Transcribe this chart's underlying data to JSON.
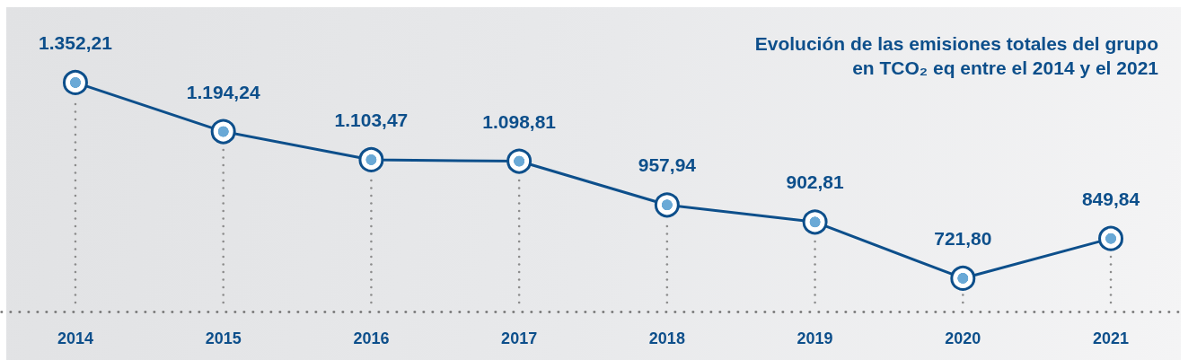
{
  "chart_data": {
    "type": "line",
    "title": "Evolución de las emisiones totales del grupo en TCO₂ eq entre el 2014 y el 2021",
    "categories": [
      "2014",
      "2015",
      "2016",
      "2017",
      "2018",
      "2019",
      "2020",
      "2021"
    ],
    "values": [
      1352.21,
      1194.24,
      1103.47,
      1098.81,
      957.94,
      902.81,
      721.8,
      849.84
    ],
    "value_labels": [
      "1.352,21",
      "1.194,24",
      "1.103,47",
      "1.098,81",
      "957,94",
      "902,81",
      "721,80",
      "849,84"
    ],
    "color": "#0d4f8b",
    "marker": "circle",
    "line_style": "solid",
    "tick_labels": "x"
  }
}
